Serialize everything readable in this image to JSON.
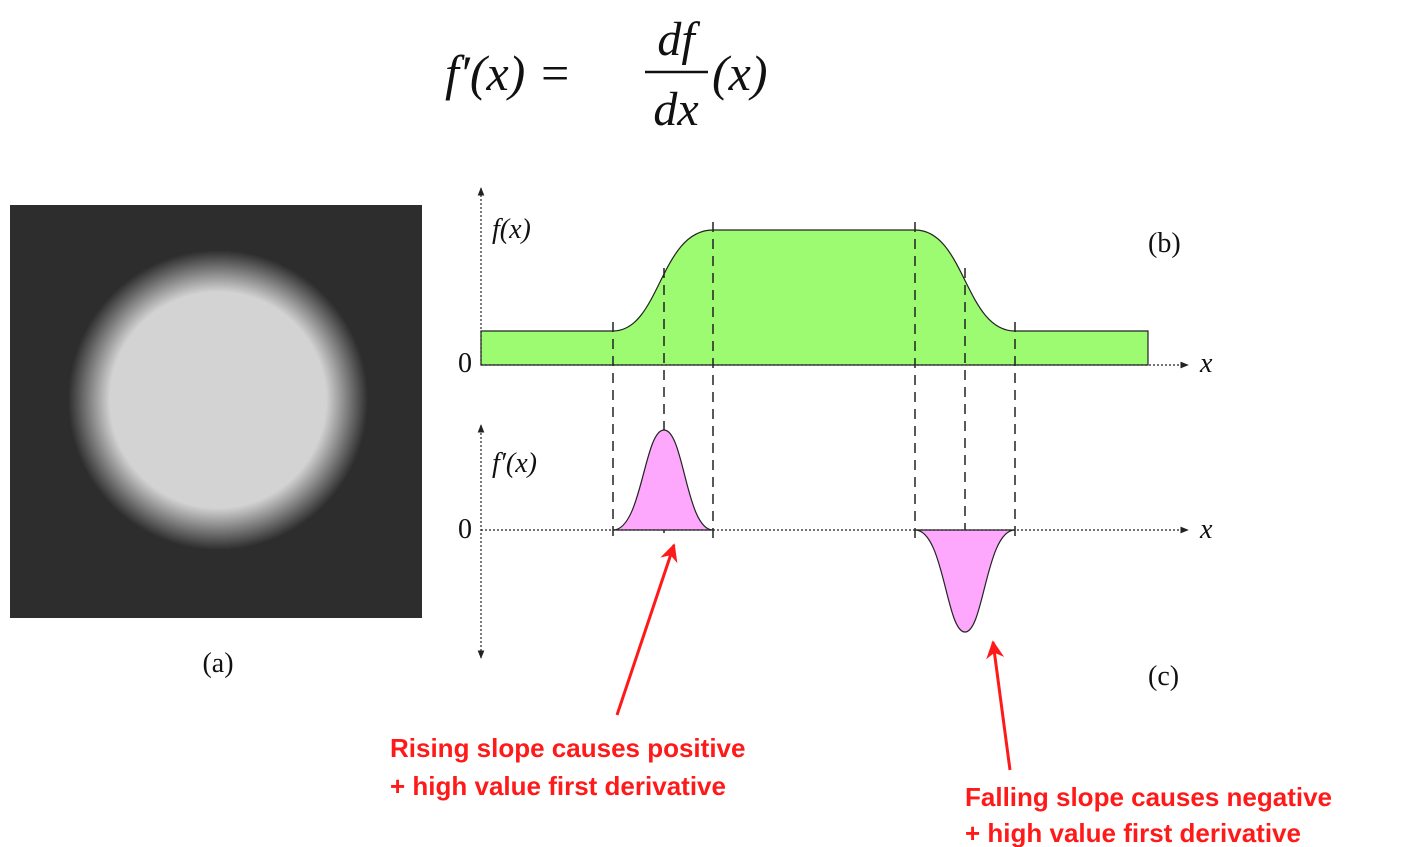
{
  "formula": {
    "lhs": "f′(x) =",
    "numerator": "df",
    "denominator": "dx",
    "rhs": "(x)"
  },
  "panel_a": {
    "caption": "(a)"
  },
  "panel_b": {
    "y_label": "f(x)",
    "zero": "0",
    "x_label": "x",
    "caption": "(b)"
  },
  "panel_c": {
    "y_label": "f′(x)",
    "zero": "0",
    "x_label": "x",
    "caption": "(c)"
  },
  "annotations": [
    {
      "lines": [
        "Rising slope causes positive",
        "+ high value first derivative"
      ]
    },
    {
      "lines": [
        "Falling slope causes negative",
        "+ high value first derivative"
      ]
    }
  ]
}
